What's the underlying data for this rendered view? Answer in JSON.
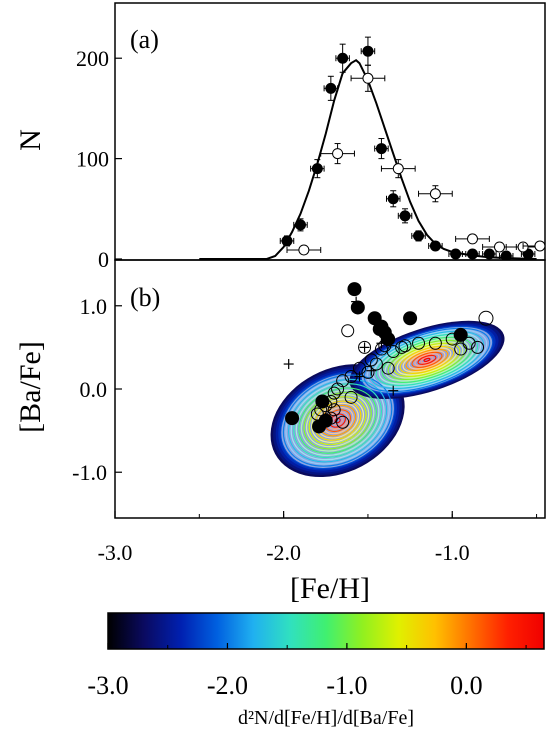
{
  "chart_data": [
    {
      "type": "line",
      "panel_label": "(a)",
      "ylabel": "N",
      "xlim": [
        -3.0,
        -0.45
      ],
      "ylim": [
        0,
        255
      ],
      "yticks": [
        0,
        100,
        200
      ],
      "ytick_labels": [
        "0",
        "100",
        "200"
      ],
      "model_curve": {
        "x": [
          -2.5,
          -2.1,
          -2.05,
          -2.0,
          -1.95,
          -1.9,
          -1.85,
          -1.8,
          -1.75,
          -1.7,
          -1.65,
          -1.6,
          -1.57,
          -1.55,
          -1.5,
          -1.45,
          -1.4,
          -1.35,
          -1.3,
          -1.25,
          -1.2,
          -1.15,
          -1.1,
          -1.05,
          -1.0,
          -0.9,
          -0.8,
          -0.7,
          -0.6,
          -0.5
        ],
        "y": [
          0,
          0,
          3,
          12,
          27,
          45,
          68,
          95,
          125,
          158,
          185,
          195,
          198,
          195,
          178,
          155,
          130,
          105,
          80,
          57,
          38,
          24,
          15,
          10,
          7,
          4,
          2,
          1,
          0.5,
          0
        ]
      },
      "series": [
        {
          "marker": "filled-circle",
          "x": [
            -1.98,
            -1.9,
            -1.8,
            -1.72,
            -1.65,
            -1.5,
            -1.42,
            -1.35,
            -1.28,
            -1.2,
            -1.1,
            -0.98,
            -0.88,
            -0.78,
            -0.68,
            -0.55
          ],
          "y": [
            18,
            34,
            90,
            170,
            200,
            207,
            110,
            60,
            43,
            23,
            13,
            5,
            5,
            5,
            3,
            5
          ],
          "xerr": [
            0.04,
            0.04,
            0.04,
            0.04,
            0.04,
            0.04,
            0.04,
            0.04,
            0.04,
            0.04,
            0.04,
            0.04,
            0.04,
            0.04,
            0.04,
            0.04
          ],
          "yerr": [
            5,
            6,
            9,
            12,
            14,
            14,
            10,
            8,
            7,
            5,
            4,
            2,
            2,
            2,
            2,
            2
          ]
        },
        {
          "marker": "open-circle",
          "x": [
            -1.88,
            -1.68,
            -1.5,
            -1.32,
            -1.1,
            -0.88,
            -0.72,
            -0.58,
            -0.48
          ],
          "y": [
            9,
            105,
            180,
            90,
            65,
            20,
            12,
            12,
            13
          ],
          "xerr": [
            0.1,
            0.1,
            0.1,
            0.1,
            0.1,
            0.1,
            0.1,
            0.1,
            0.1
          ],
          "yerr": [
            3,
            10,
            13,
            9,
            8,
            4,
            3,
            3,
            3
          ]
        }
      ]
    },
    {
      "type": "scatter",
      "panel_label": "(b)",
      "xlabel": "[Fe/H]",
      "ylabel": "[Ba/Fe]",
      "xlim": [
        -3.0,
        -0.45
      ],
      "ylim": [
        -1.55,
        1.55
      ],
      "xticks": [
        -3.0,
        -2.0,
        -1.0
      ],
      "xtick_labels": [
        "-3.0",
        "-2.0",
        "-1.0"
      ],
      "yticks": [
        1.0,
        0.0,
        -1.0
      ],
      "ytick_labels": [
        "1.0",
        "0.0",
        "-1.0"
      ],
      "density_contour_centers": [
        {
          "x": -1.68,
          "y": -0.38
        },
        {
          "x": -1.15,
          "y": 0.35
        }
      ],
      "series": [
        {
          "marker": "filled-circle",
          "x": [
            -1.58,
            -1.56,
            -1.46,
            -1.42,
            -1.4,
            -1.38,
            -1.43,
            -1.25,
            -0.95,
            -1.77,
            -1.79,
            -1.95,
            -1.75
          ],
          "y": [
            1.2,
            0.98,
            0.85,
            0.75,
            0.68,
            0.6,
            0.72,
            0.85,
            0.65,
            -0.15,
            -0.45,
            -0.35,
            -0.38
          ],
          "size": [
            7,
            7,
            7,
            7,
            7,
            7,
            7,
            7,
            7,
            7,
            7,
            7,
            7
          ]
        },
        {
          "marker": "open-circle",
          "x": [
            -1.62,
            -1.52,
            -1.48,
            -1.45,
            -1.42,
            -1.4,
            -1.38,
            -1.35,
            -1.3,
            -1.28,
            -1.2,
            -1.1,
            -1.0,
            -0.95,
            -0.9,
            -0.85,
            -0.8,
            -1.5,
            -1.55,
            -1.6,
            -1.65,
            -1.68,
            -1.7,
            -1.72,
            -1.75,
            -1.78,
            -1.8,
            -1.72,
            -1.7,
            -1.65,
            -1.6
          ],
          "y": [
            0.7,
            0.5,
            0.35,
            0.3,
            0.48,
            0.52,
            0.25,
            0.45,
            0.5,
            0.52,
            0.55,
            0.55,
            0.6,
            0.48,
            0.55,
            0.5,
            0.85,
            0.2,
            0.25,
            0.15,
            0.1,
            0.0,
            -0.05,
            -0.15,
            -0.2,
            -0.25,
            -0.3,
            -0.35,
            -0.25,
            -0.4,
            -0.1
          ],
          "size": [
            6,
            6,
            6,
            6,
            6,
            6,
            6,
            6,
            6,
            6,
            6,
            6,
            6,
            6,
            6,
            6,
            7,
            6,
            6,
            6,
            6,
            6,
            6,
            6,
            6,
            6,
            6,
            6,
            6,
            6,
            6
          ]
        },
        {
          "marker": "cross",
          "x": [
            -1.57,
            -1.35,
            -1.55,
            -1.97,
            -1.52,
            -1.42,
            -1.48
          ],
          "y": [
            1.05,
            -0.02,
            0.15,
            0.3,
            0.5,
            0.55,
            0.22
          ]
        }
      ]
    },
    {
      "type": "heatmap",
      "role": "colorbar",
      "xlabel": "d²N/d[Fe/H]/d[Ba/Fe]",
      "range": [
        -3.0,
        0.65
      ],
      "ticks": [
        -3.0,
        -2.0,
        -1.0,
        0.0
      ],
      "tick_labels": [
        "-3.0",
        "-2.0",
        "-1.0",
        "0.0"
      ],
      "colormap": [
        "#000000",
        "#0a0a60",
        "#0020b0",
        "#0060e0",
        "#20b0f0",
        "#30e0c0",
        "#40f070",
        "#90f020",
        "#e0f000",
        "#ffc000",
        "#ff7000",
        "#ff2000",
        "#f00000"
      ]
    }
  ]
}
